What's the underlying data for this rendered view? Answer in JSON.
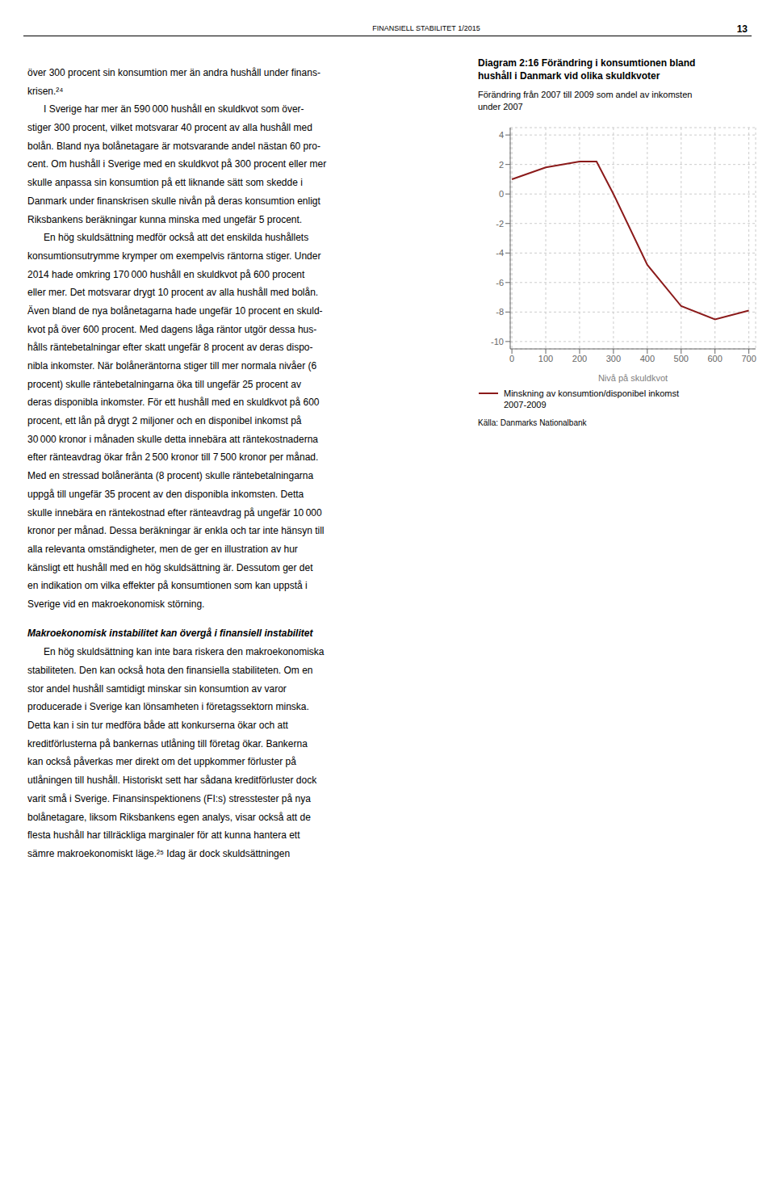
{
  "chart_data": {
    "type": "line",
    "title": "Diagram 2:16 Förändring i konsumtionen bland\nhushåll i Danmark vid olika skuldkvoter",
    "subtitle": "Förändring från 2007 till 2009 som andel av inkomsten\nunder 2007",
    "x_label": "Nivå på skuldkvot",
    "x": [
      0,
      100,
      200,
      250,
      300,
      400,
      500,
      600,
      700
    ],
    "series": [
      {
        "name": "Minskning av konsumtion/disponibel inkomst\n2007-2009",
        "color": "#8B1A1A",
        "values": [
          1.0,
          1.8,
          2.2,
          2.2,
          0.0,
          -4.8,
          -7.6,
          -8.5,
          -7.9
        ]
      }
    ],
    "xlim": [
      -5,
      720
    ],
    "xticks": [
      0,
      100,
      200,
      300,
      400,
      500,
      600,
      700
    ],
    "ylim": [
      -10.5,
      4.5
    ],
    "yticks": [
      -10,
      -8,
      -6,
      -4,
      -2,
      0,
      2,
      4
    ],
    "grid": true,
    "legend": "bottom",
    "source": "Källa: Danmarks Nationalbank"
  },
  "page": {
    "header": "FINANSIELL STABILITET 1/2015",
    "page_number": "13",
    "body_text": [
      "över 300 procent sin konsumtion mer än andra hushåll under finans-",
      "krisen.²⁴",
      "      I Sverige har mer än 590 000 hushåll en skuldkvot som över-",
      "stiger 300 procent, vilket motsvarar 40 procent av alla hushåll med",
      "bolån. Bland nya bolånetagare är motsvarande andel nästan 60 pro-",
      "cent. Om hushåll i Sverige med en skuldkvot på 300 procent eller mer",
      "skulle anpassa sin konsumtion på ett liknande sätt som skedde i",
      "Danmark under finanskrisen skulle nivån på deras konsumtion enligt",
      "Riksbankens beräkningar kunna minska med ungefär 5 procent.",
      "      En hög skuldsättning medför också att det enskilda hushållets",
      "konsumtionsutrymme krymper om exempelvis räntorna stiger. Under",
      "2014 hade omkring 170 000 hushåll en skuldkvot på 600 procent",
      "eller mer. Det motsvarar drygt 10 procent av alla hushåll med bolån.",
      "Även bland de nya bolånetagarna hade ungefär 10 procent en skuld-",
      "kvot på över 600 procent. Med dagens låga räntor utgör dessa hus-",
      "hålls räntebetalningar efter skatt ungefär 8 procent av deras dispo-",
      "nibla inkomster. När bolåneräntorna stiger till mer normala nivåer (6",
      "procent) skulle räntebetalningarna öka till ungefär 25 procent av",
      "deras disponibla inkomster. För ett hushåll med en skuldkvot på 600",
      "procent, ett lån på drygt 2 miljoner och en disponibel inkomst på",
      "30 000 kronor i månaden skulle detta innebära att räntekostnaderna",
      "efter ränteavdrag ökar från 2 500 kronor till 7 500 kronor per månad.",
      "Med en stressad bolåneränta (8 procent) skulle räntebetalningarna",
      "uppgå till ungefär 35 procent av den disponibla inkomsten. Detta",
      "skulle innebära en räntekostnad efter ränteavdrag på ungefär 10 000",
      "kronor per månad. Dessa beräkningar är enkla och tar inte hänsyn till",
      "alla relevanta omständigheter, men de ger en illustration av hur",
      "känsligt ett hushåll med en hög skuldsättning är. Dessutom ger det",
      "en indikation om vilka effekter på konsumtionen som kan uppstå i",
      "Sverige vid en makroekonomisk störning."
    ],
    "body_heading": "Makroekonomisk instabilitet kan övergå i finansiell instabilitet",
    "body_text_2": [
      "      En hög skuldsättning kan inte bara riskera den makroekonomiska",
      "stabiliteten. Den kan också hota den finansiella stabiliteten. Om en",
      "stor andel hushåll samtidigt minskar sin konsumtion av varor",
      "producerade i Sverige kan lönsamheten i företagssektorn minska.",
      "Detta kan i sin tur medföra både att konkurserna ökar och att",
      "kreditförlusterna på bankernas utlåning till företag ökar. Bankerna",
      "kan också påverkas mer direkt om det uppkommer förluster på",
      "utlåningen till hushåll. Historiskt sett har sådana kreditförluster dock",
      "varit små i Sverige. Finansinspektionens (FI:s) stresstester på nya",
      "bolånetagare, liksom Riksbankens egen analys, visar också att de",
      "flesta hushåll har tillräckliga marginaler för att kunna hantera ett",
      "sämre makroekonomiskt läge.²⁵ Idag är dock skuldsättningen"
    ]
  }
}
